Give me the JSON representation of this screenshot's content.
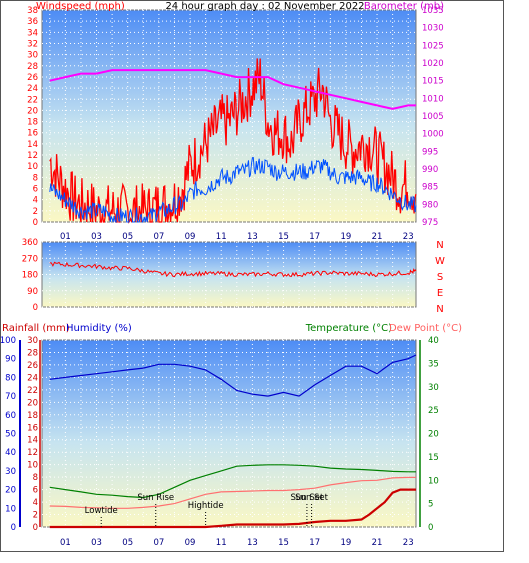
{
  "chart_data": [
    {
      "type": "line",
      "title": "24 hour graph day : 02 November 2022",
      "ylabel": "Windspeed (mph)",
      "y2label": "Barometer (mb)",
      "ylim": [
        0,
        38
      ],
      "y2lim": [
        975,
        1035
      ],
      "yticks": [
        "0",
        "2",
        "4",
        "6",
        "8",
        "10",
        "12",
        "14",
        "16",
        "18",
        "20",
        "22",
        "24",
        "26",
        "28",
        "30",
        "32",
        "34",
        "36",
        "38"
      ],
      "y2ticks": [
        "975",
        "980",
        "985",
        "990",
        "995",
        "1000",
        "1005",
        "1010",
        "1015",
        "1020",
        "1025",
        "1030",
        "1035"
      ],
      "xticks": [
        "01",
        "03",
        "05",
        "07",
        "09",
        "11",
        "13",
        "15",
        "17",
        "19",
        "21",
        "23"
      ],
      "series": [
        {
          "name": "Gust",
          "color": "#ff0000",
          "axis": "left",
          "x": [
            0,
            0.5,
            1,
            1.5,
            2,
            2.5,
            3,
            3.5,
            4,
            4.5,
            5,
            5.5,
            6,
            6.5,
            7,
            7.5,
            8,
            8.5,
            9,
            9.5,
            10,
            10.5,
            11,
            11.5,
            12,
            12.5,
            13,
            13.5,
            14,
            14.5,
            15,
            15.5,
            16,
            16.5,
            17,
            17.5,
            18,
            18.5,
            19,
            19.5,
            20,
            20.5,
            21,
            21.5,
            22,
            22.5,
            23,
            23.5
          ],
          "values": [
            11,
            8,
            6,
            4,
            3,
            3,
            2,
            2,
            2,
            2,
            2,
            2,
            2,
            2,
            3,
            3,
            4,
            6,
            10,
            12,
            14,
            16,
            18,
            18,
            20,
            22,
            24,
            26,
            18,
            16,
            16,
            14,
            18,
            20,
            22,
            24,
            18,
            16,
            14,
            13,
            14,
            14,
            12,
            10,
            8,
            6,
            7,
            5
          ]
        },
        {
          "name": "Average",
          "color": "#0050ff",
          "axis": "left",
          "x": [
            0,
            0.5,
            1,
            1.5,
            2,
            2.5,
            3,
            3.5,
            4,
            4.5,
            5,
            5.5,
            6,
            6.5,
            7,
            7.5,
            8,
            8.5,
            9,
            9.5,
            10,
            10.5,
            11,
            11.5,
            12,
            12.5,
            13,
            13.5,
            14,
            14.5,
            15,
            15.5,
            16,
            16.5,
            17,
            17.5,
            18,
            18.5,
            19,
            19.5,
            20,
            20.5,
            21,
            21.5,
            22,
            22.5,
            23,
            23.5
          ],
          "values": [
            6,
            5,
            4,
            3,
            2,
            2,
            2,
            2,
            1,
            1,
            1,
            1,
            1,
            1,
            2,
            2,
            3,
            3,
            5,
            6,
            6,
            7,
            8,
            8,
            9,
            9,
            10,
            10,
            10,
            9,
            9,
            9,
            9,
            9,
            10,
            10,
            9,
            8,
            8,
            8,
            8,
            7,
            7,
            6,
            5,
            4,
            3,
            3
          ]
        },
        {
          "name": "Barometer",
          "color": "#ff00ff",
          "axis": "right",
          "x": [
            0,
            1,
            2,
            3,
            4,
            5,
            6,
            7,
            8,
            9,
            10,
            11,
            12,
            13,
            14,
            15,
            16,
            17,
            18,
            19,
            20,
            21,
            22,
            23,
            23.5
          ],
          "values": [
            1015,
            1016,
            1017,
            1017,
            1018,
            1018,
            1018,
            1018,
            1018,
            1018,
            1018,
            1017,
            1016,
            1016,
            1016,
            1014,
            1013,
            1012,
            1011,
            1010,
            1009,
            1008,
            1007,
            1008,
            1008
          ]
        }
      ]
    },
    {
      "type": "line",
      "ylim": [
        0,
        360
      ],
      "yticks": [
        "0",
        "90",
        "180",
        "270",
        "360"
      ],
      "y2ticks": [
        "N",
        "E",
        "S",
        "W",
        "N"
      ],
      "series": [
        {
          "name": "Wind Direction",
          "color": "#ff0000",
          "x": [
            0,
            1,
            2,
            3,
            4,
            5,
            6,
            7,
            8,
            9,
            10,
            11,
            12,
            13,
            14,
            15,
            16,
            17,
            18,
            19,
            20,
            21,
            22,
            23,
            23.5
          ],
          "values": [
            240,
            235,
            230,
            225,
            215,
            215,
            200,
            185,
            180,
            185,
            185,
            185,
            180,
            180,
            185,
            180,
            180,
            185,
            190,
            185,
            185,
            180,
            185,
            190,
            200
          ]
        }
      ]
    },
    {
      "type": "line",
      "title_left": "Rainfall (mm)",
      "title_left2": "Humidity (%)",
      "title_right": "Temperature (°C)",
      "title_right2": "Dew Point (°C)",
      "rain_ylim": [
        0,
        30
      ],
      "hum_ylim": [
        0,
        100
      ],
      "temp_ylim": [
        0,
        40
      ],
      "rain_ticks": [
        "0",
        "2",
        "4",
        "6",
        "8",
        "10",
        "12",
        "14",
        "16",
        "18",
        "20",
        "22",
        "24",
        "26",
        "28",
        "30"
      ],
      "hum_ticks": [
        "0",
        "10",
        "20",
        "30",
        "40",
        "50",
        "60",
        "70",
        "80",
        "90",
        "100"
      ],
      "temp_ticks": [
        "0",
        "5",
        "10",
        "15",
        "20",
        "25",
        "30",
        "35",
        "40"
      ],
      "annotations": [
        {
          "text": "Lowtide",
          "x": 3.3
        },
        {
          "text": "Sun Rise",
          "x": 6.8
        },
        {
          "text": "Hightide",
          "x": 10.0
        },
        {
          "text": "Sun Set",
          "x": 16.5
        },
        {
          "text": "Sun Set",
          "x": 16.8
        }
      ],
      "series": [
        {
          "name": "Humidity",
          "color": "#0000cc",
          "axis": "humidity",
          "x": [
            0,
            1,
            2,
            3,
            4,
            5,
            6,
            7,
            8,
            9,
            10,
            11,
            12,
            13,
            14,
            15,
            16,
            17,
            18,
            19,
            20,
            21,
            22,
            23,
            23.5
          ],
          "values": [
            79,
            80,
            81,
            82,
            83,
            84,
            85,
            87,
            87,
            86,
            84,
            79,
            73,
            71,
            70,
            72,
            70,
            76,
            81,
            86,
            86,
            82,
            88,
            90,
            92
          ]
        },
        {
          "name": "Temperature",
          "color": "#008000",
          "axis": "temperature",
          "x": [
            0,
            1,
            2,
            3,
            4,
            5,
            6,
            7,
            8,
            9,
            10,
            11,
            12,
            13,
            14,
            15,
            16,
            17,
            18,
            19,
            20,
            21,
            22,
            23,
            23.5
          ],
          "values": [
            8.5,
            8,
            7.5,
            7,
            6.8,
            6.5,
            6.3,
            7,
            8.5,
            10,
            11,
            12,
            13,
            13.2,
            13.3,
            13.3,
            13.2,
            13,
            12.6,
            12.4,
            12.3,
            12.1,
            11.9,
            11.8,
            11.8
          ]
        },
        {
          "name": "Dew Point",
          "color": "#ff7070",
          "axis": "temperature",
          "x": [
            0,
            1,
            2,
            3,
            4,
            5,
            6,
            7,
            8,
            9,
            10,
            11,
            12,
            13,
            14,
            15,
            16,
            17,
            18,
            19,
            20,
            21,
            22,
            23,
            23.5
          ],
          "values": [
            4.5,
            4.4,
            4.2,
            4.1,
            4,
            4,
            4.2,
            4.5,
            5,
            6,
            7,
            7.5,
            7.6,
            7.7,
            7.8,
            7.8,
            8,
            8.3,
            9,
            9.5,
            9.9,
            10,
            10.5,
            10.6,
            10.6
          ]
        },
        {
          "name": "Rainfall",
          "color": "#cc0000",
          "axis": "rainfall",
          "x": [
            0,
            1,
            2,
            3,
            4,
            5,
            6,
            7,
            8,
            9,
            10,
            11,
            12,
            13,
            14,
            15,
            16,
            17,
            18,
            19,
            20,
            20.5,
            21,
            21.5,
            22,
            22.5,
            23,
            23.5
          ],
          "values": [
            0,
            0,
            0,
            0,
            0,
            0,
            0,
            0,
            0,
            0,
            0,
            0.2,
            0.4,
            0.4,
            0.4,
            0.4,
            0.5,
            0.8,
            1,
            1,
            1.2,
            2,
            3,
            4,
            5.5,
            6,
            6,
            6
          ]
        }
      ]
    }
  ]
}
